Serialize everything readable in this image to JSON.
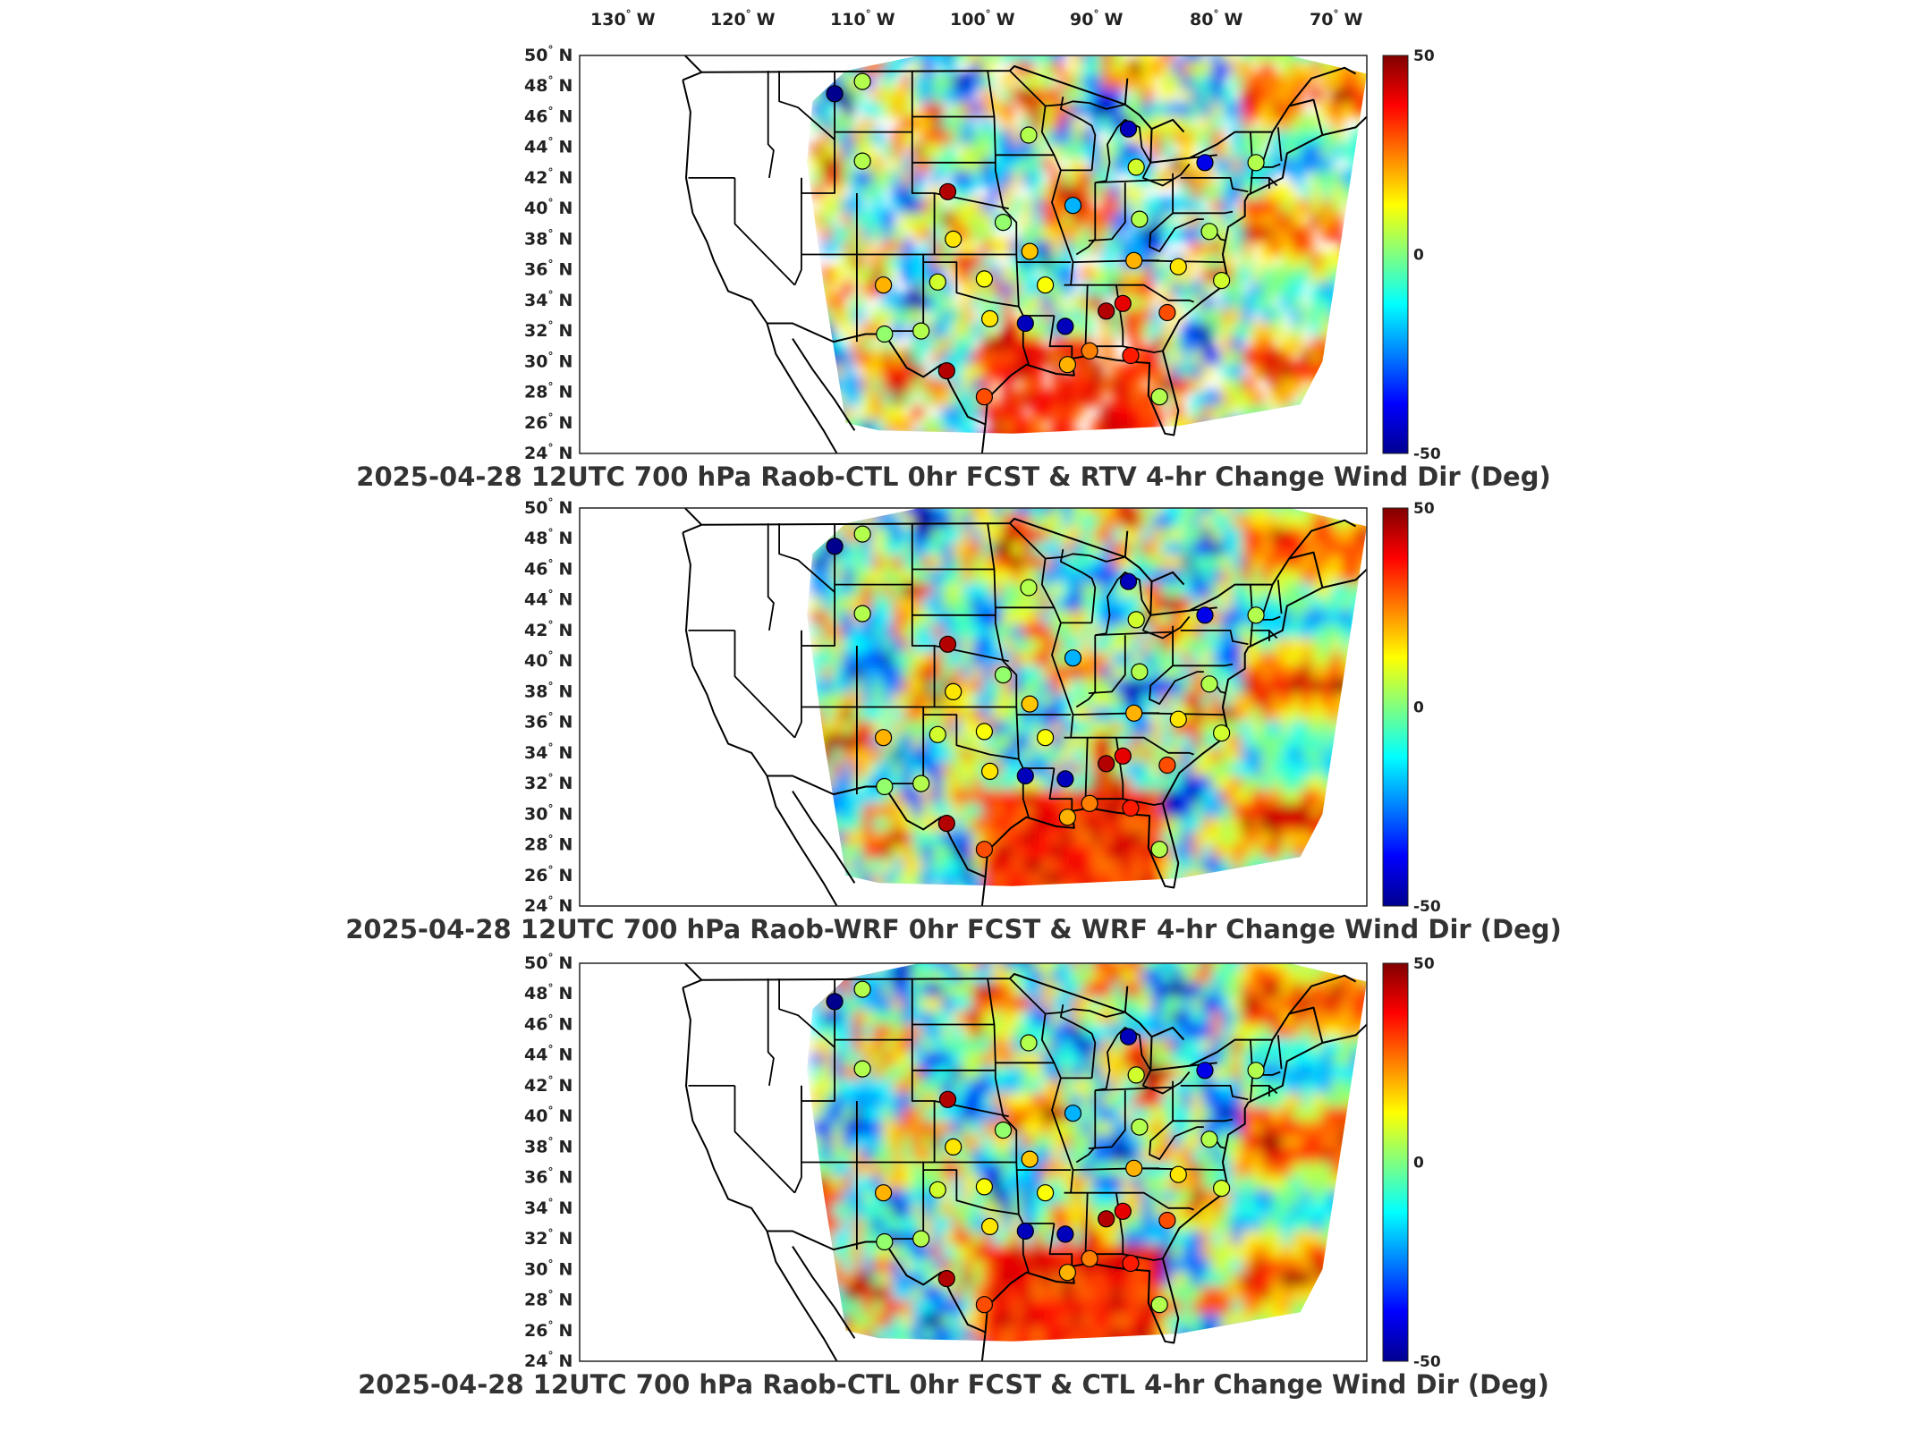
{
  "lon_ticks": [
    {
      "deg": "130",
      "hem": "W"
    },
    {
      "deg": "120",
      "hem": "W"
    },
    {
      "deg": "110",
      "hem": "W"
    },
    {
      "deg": "100",
      "hem": "W"
    },
    {
      "deg": "90",
      "hem": "W"
    },
    {
      "deg": "80",
      "hem": "W"
    },
    {
      "deg": "70",
      "hem": "W"
    }
  ],
  "lat_ticks": [
    {
      "deg": "50",
      "hem": "N"
    },
    {
      "deg": "48",
      "hem": "N"
    },
    {
      "deg": "46",
      "hem": "N"
    },
    {
      "deg": "44",
      "hem": "N"
    },
    {
      "deg": "42",
      "hem": "N"
    },
    {
      "deg": "40",
      "hem": "N"
    },
    {
      "deg": "38",
      "hem": "N"
    },
    {
      "deg": "36",
      "hem": "N"
    },
    {
      "deg": "34",
      "hem": "N"
    },
    {
      "deg": "32",
      "hem": "N"
    },
    {
      "deg": "30",
      "hem": "N"
    },
    {
      "deg": "28",
      "hem": "N"
    },
    {
      "deg": "26",
      "hem": "N"
    },
    {
      "deg": "24",
      "hem": "N"
    }
  ],
  "degree_symbol": "°",
  "colorbar": {
    "max_label": "50",
    "mid_label": "0",
    "min_label": "-50",
    "colors": [
      "#00008f",
      "#0000ff",
      "#0080ff",
      "#00ffff",
      "#80ff80",
      "#ffff00",
      "#ff8000",
      "#ff0000",
      "#800000"
    ]
  },
  "panels": [
    {
      "title": "2025-04-28 12UTC 700 hPa Raob-CTL 0hr FCST & RTV 4-hr Change Wind Dir (Deg)",
      "variant": "rtv"
    },
    {
      "title": "2025-04-28 12UTC 700 hPa Raob-WRF 0hr FCST & WRF 4-hr Change Wind Dir (Deg)",
      "variant": "wrf"
    },
    {
      "title": "2025-04-28 12UTC 700 hPa Raob-CTL 0hr FCST & CTL 4-hr Change Wind Dir (Deg)",
      "variant": "ctl"
    }
  ],
  "stations": [
    {
      "lon": -111,
      "lat": 47.5,
      "value": -50
    },
    {
      "lon": -108.5,
      "lat": 48.3,
      "value": 5
    },
    {
      "lon": -108.5,
      "lat": 43.1,
      "value": 5
    },
    {
      "lon": -100.8,
      "lat": 41.1,
      "value": 45
    },
    {
      "lon": -100.3,
      "lat": 38.0,
      "value": 15
    },
    {
      "lon": -95.8,
      "lat": 39.1,
      "value": 2
    },
    {
      "lon": -93.5,
      "lat": 44.8,
      "value": 5
    },
    {
      "lon": -89.5,
      "lat": 40.2,
      "value": -20
    },
    {
      "lon": -83.8,
      "lat": 42.7,
      "value": 8
    },
    {
      "lon": -84.5,
      "lat": 45.2,
      "value": -45
    },
    {
      "lon": -77.6,
      "lat": 43.0,
      "value": -40
    },
    {
      "lon": -73.0,
      "lat": 43.0,
      "value": 5
    },
    {
      "lon": -83.5,
      "lat": 39.3,
      "value": 5
    },
    {
      "lon": -77.2,
      "lat": 38.5,
      "value": 5
    },
    {
      "lon": -84.0,
      "lat": 36.6,
      "value": 20
    },
    {
      "lon": -80.0,
      "lat": 36.2,
      "value": 15
    },
    {
      "lon": -76.1,
      "lat": 35.3,
      "value": 8
    },
    {
      "lon": -81.0,
      "lat": 33.2,
      "value": 30
    },
    {
      "lon": -85.0,
      "lat": 33.8,
      "value": 40
    },
    {
      "lon": -86.5,
      "lat": 33.3,
      "value": 45
    },
    {
      "lon": -90.2,
      "lat": 32.3,
      "value": -45
    },
    {
      "lon": -93.8,
      "lat": 32.5,
      "value": -45
    },
    {
      "lon": -92.0,
      "lat": 35.0,
      "value": 12
    },
    {
      "lon": -93.4,
      "lat": 37.2,
      "value": 18
    },
    {
      "lon": -97.5,
      "lat": 35.4,
      "value": 12
    },
    {
      "lon": -97.0,
      "lat": 32.8,
      "value": 15
    },
    {
      "lon": -101.7,
      "lat": 35.2,
      "value": 8
    },
    {
      "lon": -103.2,
      "lat": 32.0,
      "value": 5
    },
    {
      "lon": -106.6,
      "lat": 35.0,
      "value": 20
    },
    {
      "lon": -106.5,
      "lat": 31.8,
      "value": 2
    },
    {
      "lon": -100.9,
      "lat": 29.4,
      "value": 45
    },
    {
      "lon": -97.5,
      "lat": 27.7,
      "value": 30
    },
    {
      "lon": -90.0,
      "lat": 29.8,
      "value": 20
    },
    {
      "lon": -84.3,
      "lat": 30.4,
      "value": 35
    },
    {
      "lon": -81.7,
      "lat": 27.7,
      "value": 5
    },
    {
      "lon": -88.0,
      "lat": 30.7,
      "value": 25
    }
  ]
}
